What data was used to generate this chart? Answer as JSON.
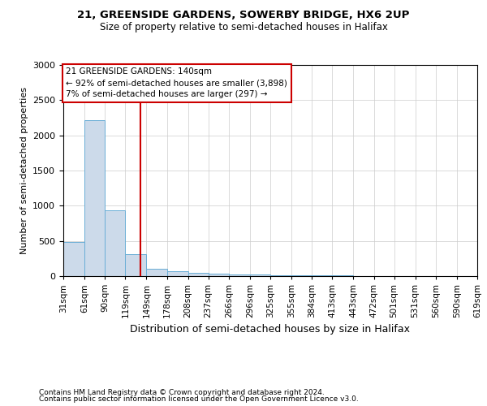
{
  "title1": "21, GREENSIDE GARDENS, SOWERBY BRIDGE, HX6 2UP",
  "title2": "Size of property relative to semi-detached houses in Halifax",
  "xlabel": "Distribution of semi-detached houses by size in Halifax",
  "ylabel": "Number of semi-detached properties",
  "footnote1": "Contains HM Land Registry data © Crown copyright and database right 2024.",
  "footnote2": "Contains public sector information licensed under the Open Government Licence v3.0.",
  "annotation_title": "21 GREENSIDE GARDENS: 140sqm",
  "annotation_line1": "← 92% of semi-detached houses are smaller (3,898)",
  "annotation_line2": "7% of semi-detached houses are larger (297) →",
  "property_size": 140,
  "bar_color": "#ccdaea",
  "bar_edge_color": "#6aaed6",
  "vline_color": "#cc0000",
  "bins": [
    31,
    61,
    90,
    119,
    149,
    178,
    208,
    237,
    266,
    296,
    325,
    355,
    384,
    413,
    443,
    472,
    501,
    531,
    560,
    590,
    619
  ],
  "values": [
    480,
    2220,
    940,
    310,
    100,
    70,
    50,
    30,
    25,
    20,
    15,
    10,
    8,
    6,
    5,
    4,
    3,
    2,
    2,
    2
  ],
  "ylim": [
    0,
    3000
  ],
  "yticks": [
    0,
    500,
    1000,
    1500,
    2000,
    2500,
    3000
  ],
  "bg_color": "#ffffff",
  "grid_color": "#cccccc"
}
